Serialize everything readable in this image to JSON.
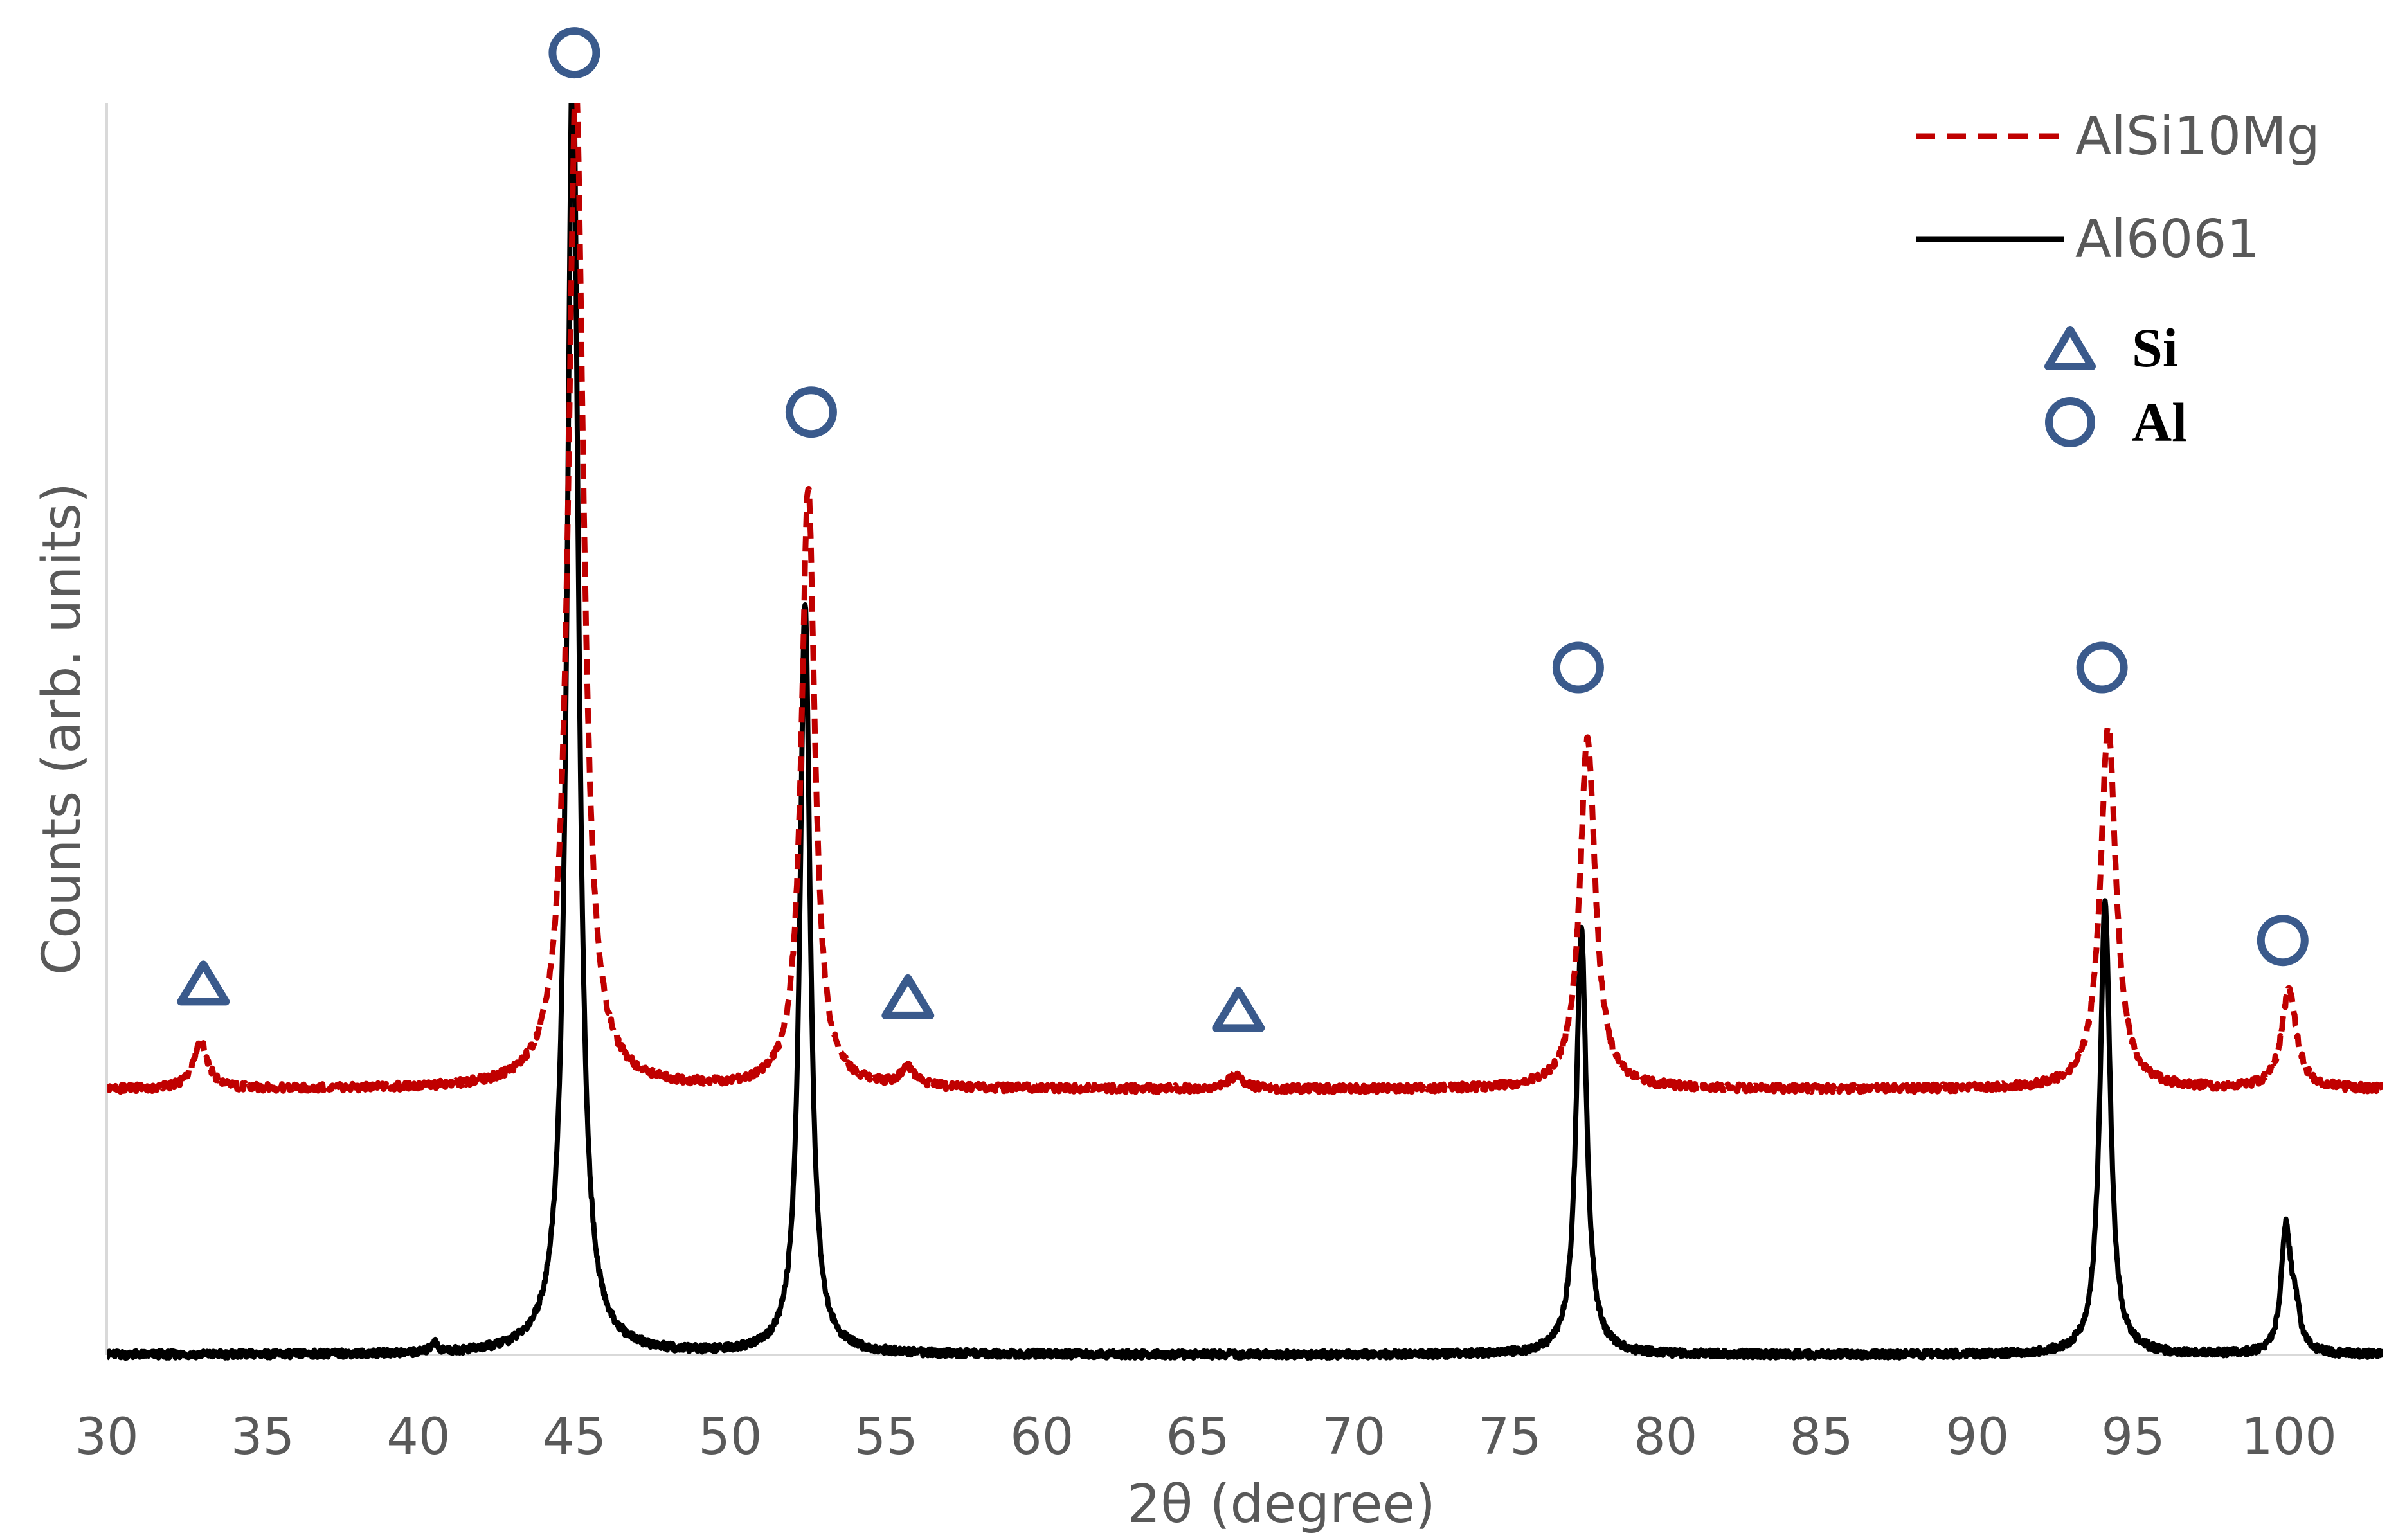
{
  "chart_data": {
    "type": "line",
    "title": "",
    "xlabel": "2θ (degree)",
    "ylabel": "Counts (arb. units)",
    "xlim": [
      30,
      103
    ],
    "ylim": [
      0,
      1
    ],
    "grid": false,
    "x_ticks": [
      "30",
      "35",
      "40",
      "45",
      "50",
      "55",
      "60",
      "65",
      "70",
      "75",
      "80",
      "85",
      "90",
      "95",
      "100"
    ],
    "series": [
      {
        "name": "AlSi10Mg",
        "color": "#c00000",
        "style": "dashed",
        "baseline": 0.212,
        "peaks": [
          {
            "x": 33.0,
            "height": 0.038,
            "width": 0.28
          },
          {
            "x": 45.05,
            "height": 0.8,
            "width": 0.3
          },
          {
            "x": 52.5,
            "height": 0.48,
            "width": 0.26
          },
          {
            "x": 55.7,
            "height": 0.014,
            "width": 0.3
          },
          {
            "x": 66.2,
            "height": 0.01,
            "width": 0.3
          },
          {
            "x": 77.5,
            "height": 0.28,
            "width": 0.3
          },
          {
            "x": 94.2,
            "height": 0.29,
            "width": 0.3
          },
          {
            "x": 100.0,
            "height": 0.08,
            "width": 0.28
          }
        ]
      },
      {
        "name": "Al6061",
        "color": "#000000",
        "style": "solid",
        "baseline": 0.0,
        "peaks": [
          {
            "x": 40.5,
            "height": 0.008,
            "width": 0.12
          },
          {
            "x": 44.95,
            "height": 1.05,
            "width": 0.22
          },
          {
            "x": 52.4,
            "height": 0.6,
            "width": 0.2
          },
          {
            "x": 77.3,
            "height": 0.34,
            "width": 0.2
          },
          {
            "x": 94.1,
            "height": 0.36,
            "width": 0.2
          },
          {
            "x": 99.9,
            "height": 0.098,
            "width": 0.18
          },
          {
            "x": 100.2,
            "height": 0.03,
            "width": 0.18
          }
        ]
      }
    ],
    "phase_markers": [
      {
        "phase": "Si",
        "symbol": "triangle",
        "x": 33.1,
        "y": 0.297
      },
      {
        "phase": "Si",
        "symbol": "triangle",
        "x": 55.7,
        "y": 0.286
      },
      {
        "phase": "Si",
        "symbol": "triangle",
        "x": 66.3,
        "y": 0.276
      },
      {
        "phase": "Al",
        "symbol": "circle",
        "x": 45.0,
        "y": 1.04
      },
      {
        "phase": "Al",
        "symbol": "circle",
        "x": 52.6,
        "y": 0.753
      },
      {
        "phase": "Al",
        "symbol": "circle",
        "x": 77.2,
        "y": 0.549
      },
      {
        "phase": "Al",
        "symbol": "circle",
        "x": 94.0,
        "y": 0.549
      },
      {
        "phase": "Al",
        "symbol": "circle",
        "x": 99.8,
        "y": 0.331
      }
    ],
    "legend": {
      "position": "top-right",
      "lines": [
        "AlSi10Mg",
        "Al6061"
      ],
      "phases": [
        {
          "symbol": "triangle",
          "label": "Si"
        },
        {
          "symbol": "circle",
          "label": "Al"
        }
      ]
    },
    "marker_color": "#3a5a8c",
    "axis_color": "#d9d9d9"
  }
}
